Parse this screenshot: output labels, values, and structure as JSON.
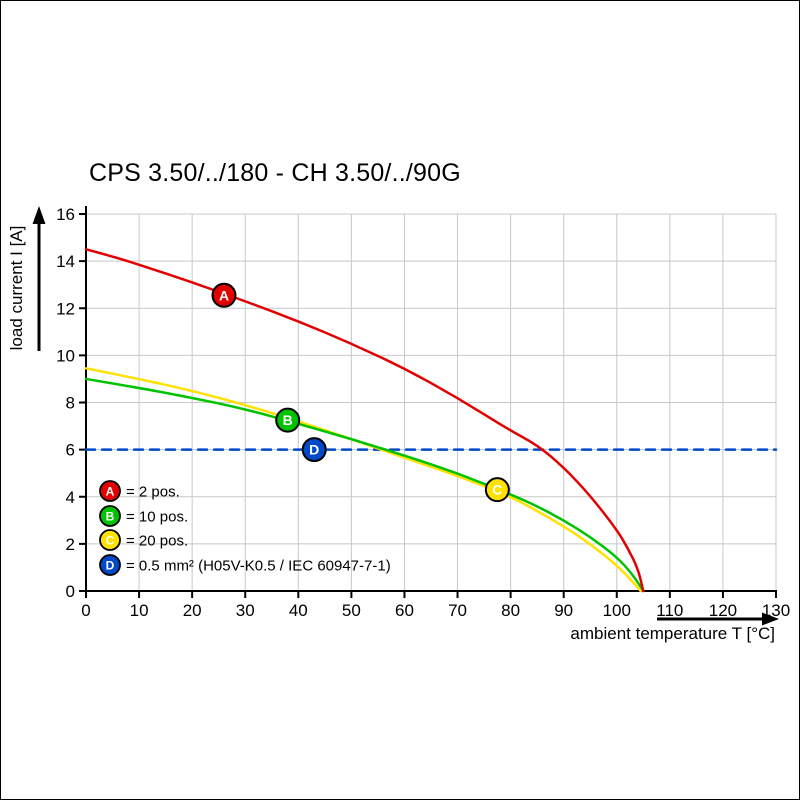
{
  "chart_data": {
    "type": "line",
    "title": "CPS 3.50/../180 - CH 3.50/../90G",
    "xlabel": "ambient temperature T [°C]",
    "ylabel": "load current I [A]",
    "xlim": [
      0,
      130
    ],
    "ylim": [
      0,
      16
    ],
    "xticks": [
      0,
      10,
      20,
      30,
      40,
      50,
      60,
      70,
      80,
      90,
      100,
      110,
      120,
      130
    ],
    "yticks": [
      0,
      2,
      4,
      6,
      8,
      10,
      12,
      14,
      16
    ],
    "grid": true,
    "legend_position": "lower-left-inside",
    "series": [
      {
        "id": "A",
        "label": "= 2 pos.",
        "color": "#e30000",
        "style": "solid",
        "marker_at": [
          26,
          12.55
        ],
        "points": [
          [
            0,
            14.5
          ],
          [
            5,
            14.2
          ],
          [
            10,
            13.85
          ],
          [
            20,
            13.1
          ],
          [
            30,
            12.3
          ],
          [
            40,
            11.45
          ],
          [
            50,
            10.5
          ],
          [
            60,
            9.45
          ],
          [
            70,
            8.2
          ],
          [
            80,
            6.8
          ],
          [
            85,
            6.2
          ],
          [
            90,
            5.25
          ],
          [
            95,
            4.05
          ],
          [
            100,
            2.6
          ],
          [
            102,
            1.85
          ],
          [
            104,
            0.95
          ],
          [
            105,
            0
          ]
        ]
      },
      {
        "id": "B",
        "label": "= 10 pos.",
        "color": "#00c300",
        "style": "solid",
        "marker_at": [
          38,
          7.25
        ],
        "points": [
          [
            0,
            9.0
          ],
          [
            10,
            8.62
          ],
          [
            20,
            8.2
          ],
          [
            30,
            7.72
          ],
          [
            40,
            7.1
          ],
          [
            50,
            6.45
          ],
          [
            60,
            5.75
          ],
          [
            70,
            5.0
          ],
          [
            80,
            4.1
          ],
          [
            85,
            3.6
          ],
          [
            90,
            3.0
          ],
          [
            95,
            2.3
          ],
          [
            100,
            1.45
          ],
          [
            103,
            0.7
          ],
          [
            105,
            0
          ]
        ]
      },
      {
        "id": "C",
        "label": "= 20 pos.",
        "color": "#ffe100",
        "style": "solid",
        "marker_at": [
          77.5,
          4.3
        ],
        "points": [
          [
            0,
            9.45
          ],
          [
            10,
            9.0
          ],
          [
            20,
            8.5
          ],
          [
            30,
            7.9
          ],
          [
            40,
            7.2
          ],
          [
            50,
            6.45
          ],
          [
            60,
            5.65
          ],
          [
            70,
            4.9
          ],
          [
            80,
            4.0
          ],
          [
            85,
            3.4
          ],
          [
            90,
            2.75
          ],
          [
            95,
            2.0
          ],
          [
            100,
            1.1
          ],
          [
            103,
            0.4
          ],
          [
            104.5,
            0
          ]
        ]
      },
      {
        "id": "D",
        "label": "= 0.5 mm² (H05V-K0.5 / IEC 60947-7-1)",
        "color": "#0049c8",
        "style": "dashed",
        "marker_at": [
          43,
          6
        ],
        "points": [
          [
            0,
            6
          ],
          [
            130,
            6
          ]
        ]
      }
    ]
  }
}
